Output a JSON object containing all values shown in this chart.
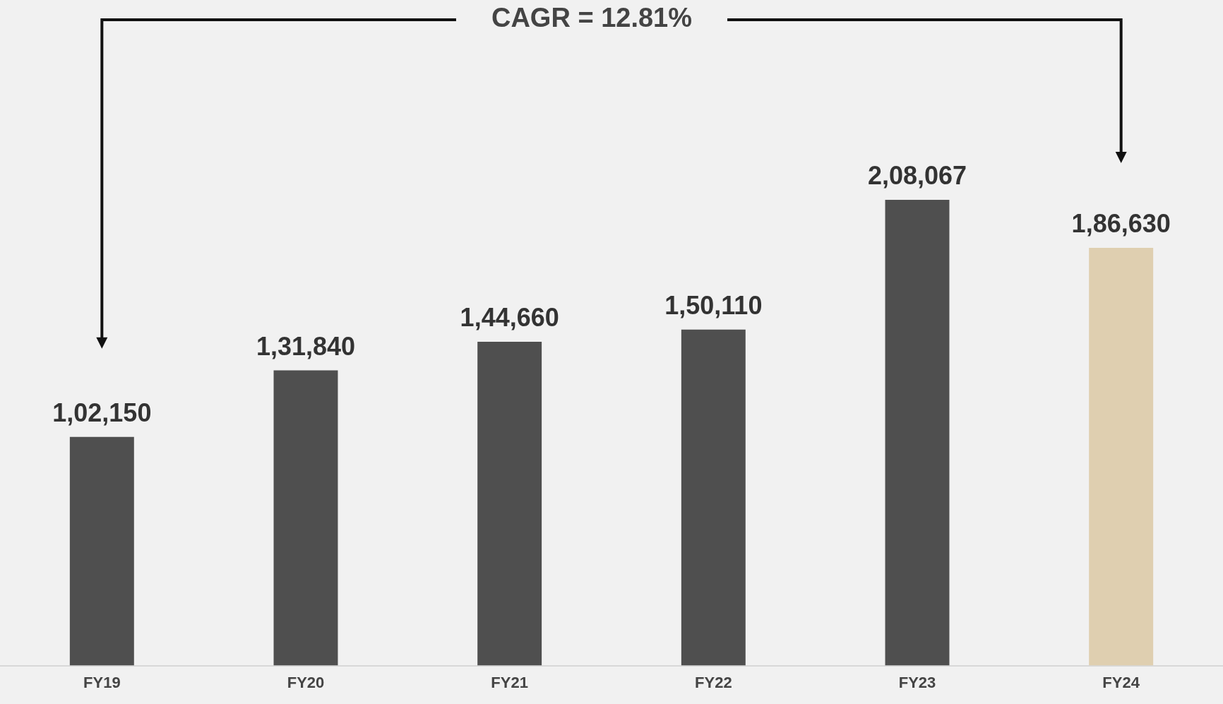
{
  "chart_data": {
    "type": "bar",
    "categories": [
      "FY19",
      "FY20",
      "FY21",
      "FY22",
      "FY23",
      "FY24"
    ],
    "values": [
      102150,
      131840,
      144660,
      150110,
      208067,
      186630
    ],
    "colors": [
      "#4f4f4f",
      "#4f4f4f",
      "#4f4f4f",
      "#4f4f4f",
      "#4f4f4f",
      "#dfcfb0"
    ],
    "value_labels": [
      "1,02,150",
      "1,31,840",
      "1,44,660",
      "1,50,110",
      "2,08,067",
      "1,86,630"
    ],
    "annotations": [
      "CAGR = 12.81%"
    ],
    "grid": false,
    "legend": false
  }
}
